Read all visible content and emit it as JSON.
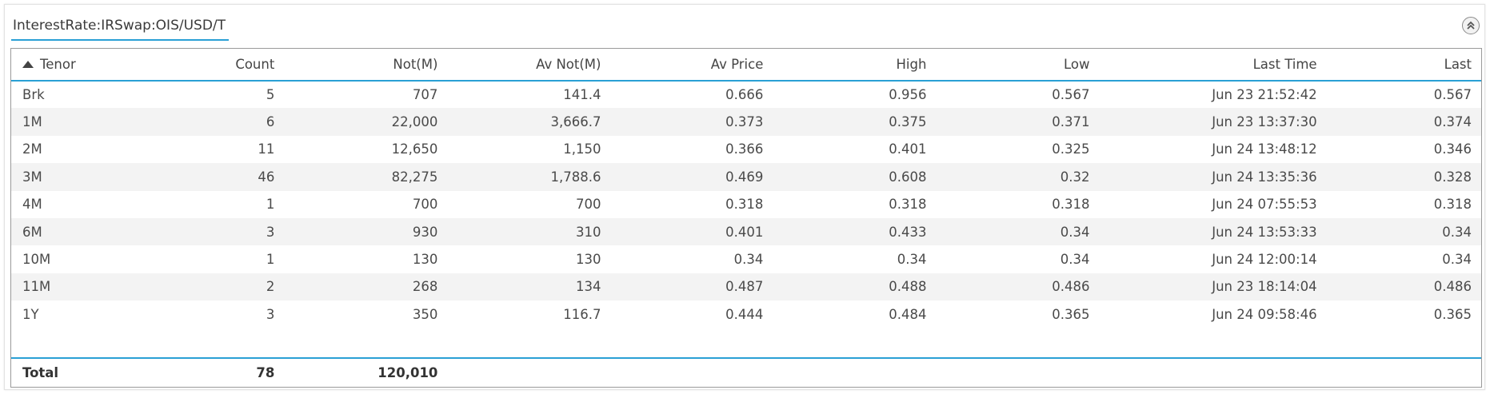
{
  "panel": {
    "title": "InterestRate:IRSwap:OIS/USD/T"
  },
  "columns": {
    "tenor": "Tenor",
    "count": "Count",
    "not": "Not(M)",
    "av_not": "Av Not(M)",
    "av_price": "Av Price",
    "high": "High",
    "low": "Low",
    "last_time": "Last Time",
    "last": "Last"
  },
  "rows": [
    {
      "tenor": "Brk",
      "count": "5",
      "not": "707",
      "av_not": "141.4",
      "av_price": "0.666",
      "high": "0.956",
      "low": "0.567",
      "last_time": "Jun 23 21:52:42",
      "last": "0.567"
    },
    {
      "tenor": "1M",
      "count": "6",
      "not": "22,000",
      "av_not": "3,666.7",
      "av_price": "0.373",
      "high": "0.375",
      "low": "0.371",
      "last_time": "Jun 23 13:37:30",
      "last": "0.374"
    },
    {
      "tenor": "2M",
      "count": "11",
      "not": "12,650",
      "av_not": "1,150",
      "av_price": "0.366",
      "high": "0.401",
      "low": "0.325",
      "last_time": "Jun 24 13:48:12",
      "last": "0.346"
    },
    {
      "tenor": "3M",
      "count": "46",
      "not": "82,275",
      "av_not": "1,788.6",
      "av_price": "0.469",
      "high": "0.608",
      "low": "0.32",
      "last_time": "Jun 24 13:35:36",
      "last": "0.328"
    },
    {
      "tenor": "4M",
      "count": "1",
      "not": "700",
      "av_not": "700",
      "av_price": "0.318",
      "high": "0.318",
      "low": "0.318",
      "last_time": "Jun 24 07:55:53",
      "last": "0.318"
    },
    {
      "tenor": "6M",
      "count": "3",
      "not": "930",
      "av_not": "310",
      "av_price": "0.401",
      "high": "0.433",
      "low": "0.34",
      "last_time": "Jun 24 13:53:33",
      "last": "0.34"
    },
    {
      "tenor": "10M",
      "count": "1",
      "not": "130",
      "av_not": "130",
      "av_price": "0.34",
      "high": "0.34",
      "low": "0.34",
      "last_time": "Jun 24 12:00:14",
      "last": "0.34"
    },
    {
      "tenor": "11M",
      "count": "2",
      "not": "268",
      "av_not": "134",
      "av_price": "0.487",
      "high": "0.488",
      "low": "0.486",
      "last_time": "Jun 23 18:14:04",
      "last": "0.486"
    },
    {
      "tenor": "1Y",
      "count": "3",
      "not": "350",
      "av_not": "116.7",
      "av_price": "0.444",
      "high": "0.484",
      "low": "0.365",
      "last_time": "Jun 24 09:58:46",
      "last": "0.365"
    }
  ],
  "totals": {
    "label": "Total",
    "count": "78",
    "not": "120,010"
  },
  "icons": {
    "collapse": "collapse-up-icon",
    "sort": "sort-ascending-icon"
  },
  "colors": {
    "accent": "#2aa0d5",
    "stripe": "#f3f3f3"
  }
}
